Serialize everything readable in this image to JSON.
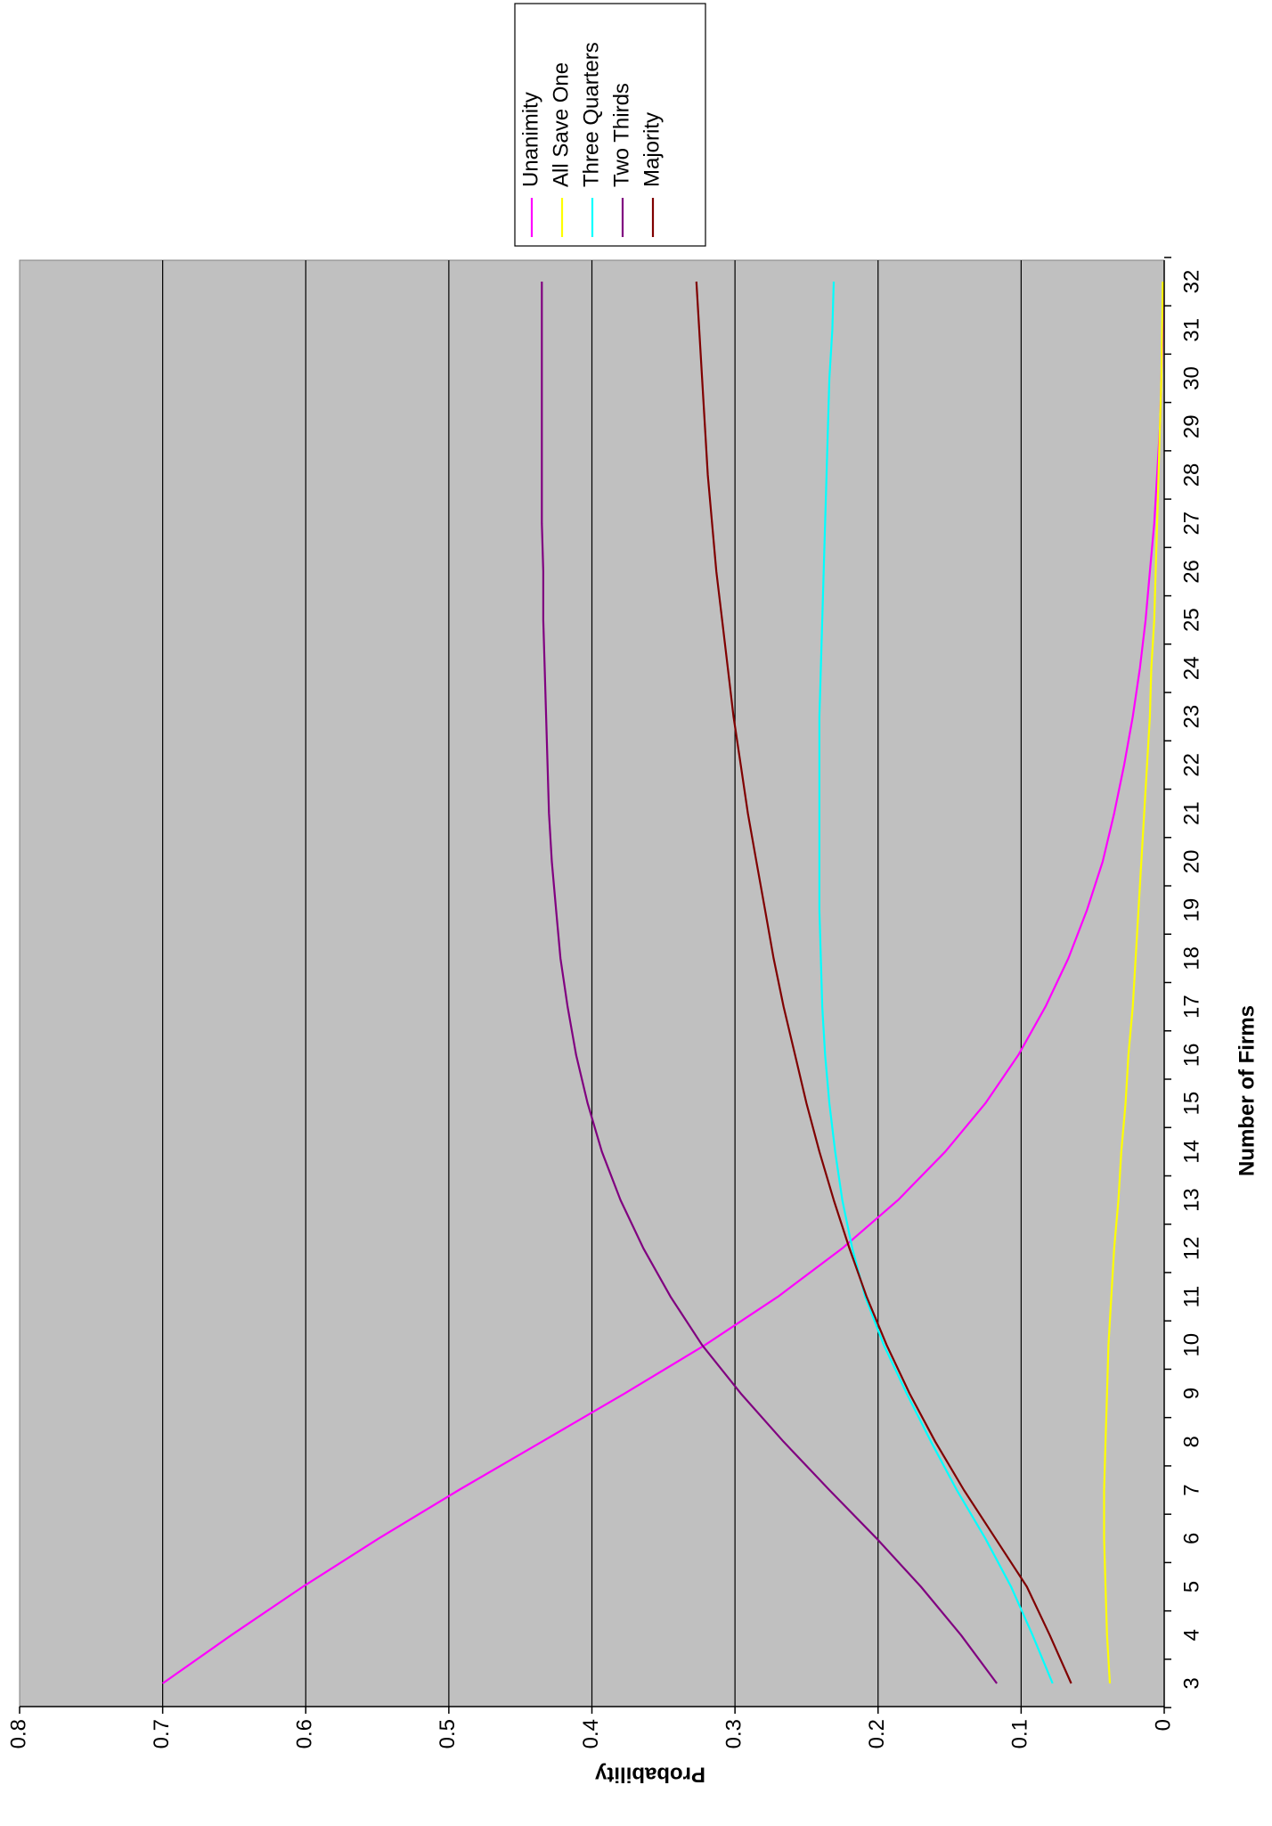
{
  "chart_data": {
    "type": "line",
    "title": "",
    "xlabel": "Number of Firms",
    "ylabel": "Probability",
    "x": [
      3,
      4,
      5,
      6,
      7,
      8,
      9,
      10,
      11,
      12,
      13,
      14,
      15,
      16,
      17,
      18,
      19,
      20,
      21,
      22,
      23,
      24,
      25,
      26,
      27,
      28,
      29,
      30,
      31,
      32
    ],
    "ylim": [
      0,
      0.8
    ],
    "yticks": [
      "0",
      "0.1",
      "0.2",
      "0.3",
      "0.4",
      "0.5",
      "0.6",
      "0.7",
      "0.8"
    ],
    "grid": true,
    "legend_position": "top-right",
    "orientation": "rotated",
    "plot_background": "#C0C0C0",
    "series": [
      {
        "name": "Unanimity",
        "color": "#FF00FF",
        "values": [
          0.7,
          0.652,
          0.602,
          0.549,
          0.493,
          0.435,
          0.377,
          0.321,
          0.27,
          0.225,
          0.186,
          0.153,
          0.125,
          0.102,
          0.083,
          0.067,
          0.054,
          0.043,
          0.035,
          0.028,
          0.022,
          0.017,
          0.013,
          0.01,
          0.007,
          0.005,
          0.003,
          0.002,
          0.001,
          0.0005
        ]
      },
      {
        "name": "All Save One",
        "color": "#FFFF00",
        "values": [
          0.038,
          0.04,
          0.041,
          0.042,
          0.042,
          0.041,
          0.04,
          0.039,
          0.037,
          0.035,
          0.032,
          0.03,
          0.027,
          0.025,
          0.022,
          0.02,
          0.018,
          0.016,
          0.014,
          0.012,
          0.01,
          0.009,
          0.007,
          0.006,
          0.005,
          0.004,
          0.003,
          0.002,
          0.0015,
          0.001
        ]
      },
      {
        "name": "Three Quarters",
        "color": "#00FFFF",
        "values": [
          0.078,
          0.092,
          0.107,
          0.125,
          0.145,
          0.163,
          0.18,
          0.196,
          0.209,
          0.218,
          0.225,
          0.23,
          0.234,
          0.237,
          0.239,
          0.24,
          0.241,
          0.241,
          0.241,
          0.241,
          0.241,
          0.24,
          0.239,
          0.238,
          0.237,
          0.236,
          0.235,
          0.234,
          0.232,
          0.231
        ]
      },
      {
        "name": "Two Thirds",
        "color": "#800080",
        "values": [
          0.117,
          0.142,
          0.17,
          0.201,
          0.234,
          0.266,
          0.296,
          0.323,
          0.345,
          0.364,
          0.38,
          0.393,
          0.403,
          0.411,
          0.417,
          0.422,
          0.425,
          0.428,
          0.43,
          0.431,
          0.432,
          0.433,
          0.434,
          0.434,
          0.435,
          0.435,
          0.435,
          0.435,
          0.435,
          0.435
        ]
      },
      {
        "name": "Majority",
        "color": "#800000",
        "values": [
          0.065,
          0.08,
          0.096,
          0.118,
          0.14,
          0.16,
          0.178,
          0.194,
          0.208,
          0.22,
          0.231,
          0.241,
          0.25,
          0.258,
          0.266,
          0.273,
          0.279,
          0.285,
          0.291,
          0.296,
          0.301,
          0.305,
          0.309,
          0.313,
          0.316,
          0.319,
          0.321,
          0.323,
          0.325,
          0.327
        ]
      }
    ]
  }
}
